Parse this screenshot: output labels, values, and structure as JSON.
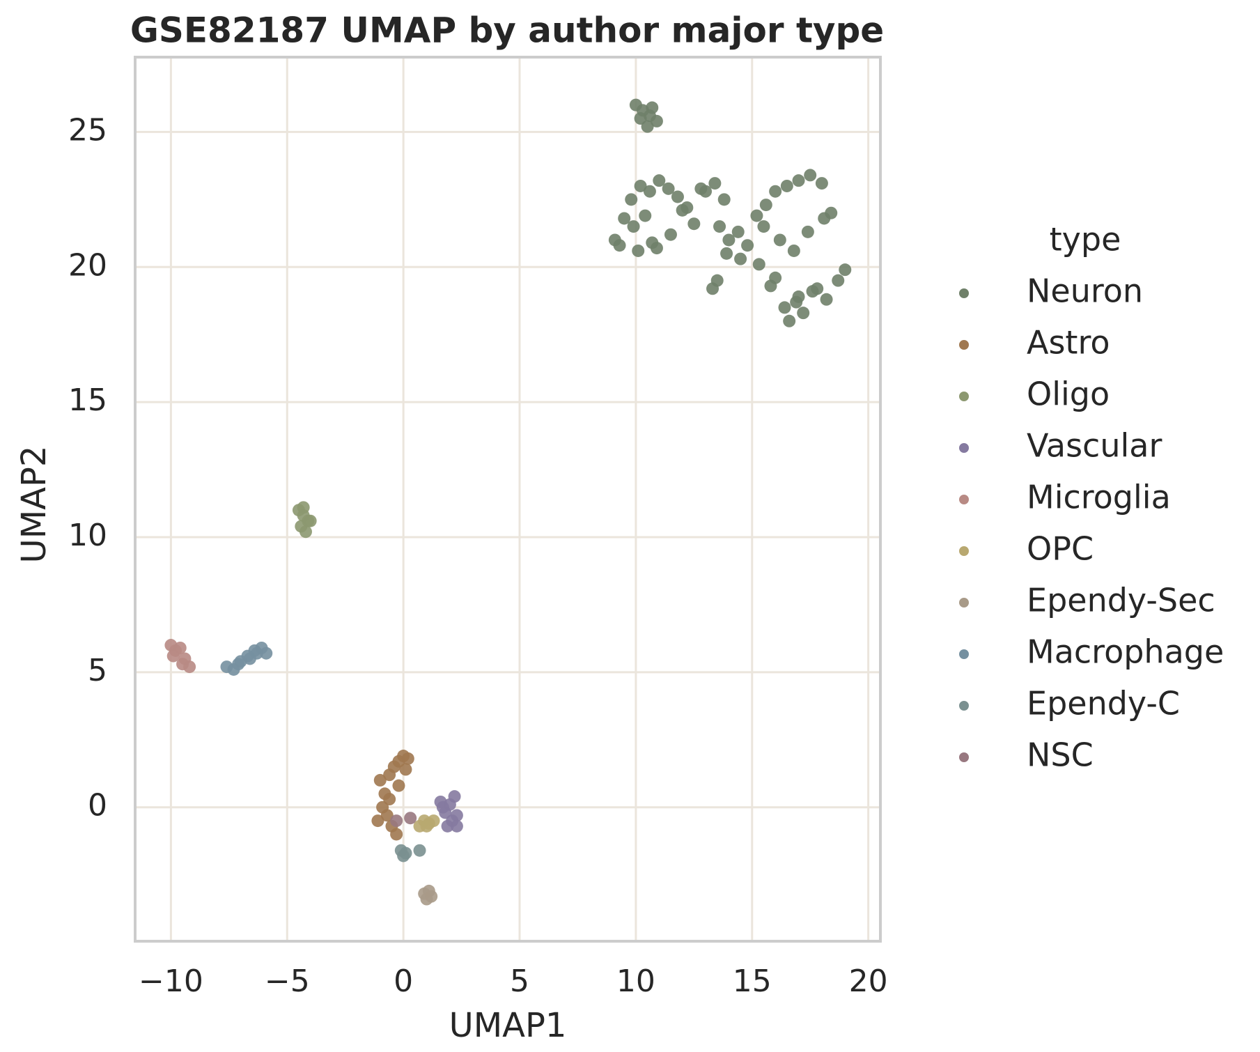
{
  "chart_data": {
    "type": "scatter",
    "title": "GSE82187 UMAP by author major type",
    "x_label": "UMAP1",
    "y_label": "UMAP2",
    "legend_title": "type",
    "legend": "right",
    "grid": true,
    "xlim": [
      -11.54,
      20.52
    ],
    "ylim": [
      -4.96,
      27.77
    ],
    "xticks": [
      {
        "value": -10,
        "label": "−10"
      },
      {
        "value": -5,
        "label": "−5"
      },
      0,
      5,
      10,
      15,
      20
    ],
    "yticks": [
      0,
      5,
      10,
      15,
      20,
      25
    ],
    "series": [
      {
        "name": "Neuron",
        "color": "#6f8069",
        "x": [
          10,
          10.3,
          10.6,
          10.9,
          10.2,
          10.7,
          10.5,
          9.1,
          9.5,
          9.8,
          10.2,
          10.6,
          11,
          11.4,
          11.8,
          12.2,
          9.3,
          9.9,
          10.4,
          10.9,
          11.5,
          12,
          12.5,
          10.1,
          10.7,
          13,
          13.4,
          13.8,
          12.8,
          13.6,
          14,
          14.4,
          14.8,
          13.9,
          14.5,
          13.3,
          13.5,
          15.2,
          15.6,
          16,
          16.5,
          17,
          17.5,
          18,
          18.4,
          15.5,
          16.2,
          16.8,
          17.4,
          18.1,
          18.7,
          19,
          15.8,
          16.4,
          17,
          17.6,
          18.2,
          16,
          16.6,
          17.2,
          17.8,
          15.3,
          16.9
        ],
        "values": [
          26,
          25.8,
          25.6,
          25.4,
          25.5,
          25.9,
          25.2,
          21,
          21.8,
          22.5,
          23,
          22.8,
          23.2,
          22.9,
          22.6,
          22.2,
          20.8,
          21.5,
          21.9,
          20.7,
          21.2,
          22.1,
          21.6,
          20.6,
          20.9,
          22.8,
          23.1,
          22.5,
          22.9,
          21.5,
          21,
          21.3,
          20.8,
          20.5,
          20.3,
          19.2,
          19.5,
          21.9,
          22.3,
          22.8,
          23,
          23.2,
          23.4,
          23.1,
          22,
          21.5,
          21,
          20.6,
          21.3,
          21.8,
          19.5,
          19.9,
          19.3,
          18.5,
          18.9,
          19.1,
          18.8,
          19.6,
          18,
          18.3,
          19.2,
          20.1,
          18.7
        ]
      },
      {
        "name": "Astro",
        "color": "#a07850",
        "x": [
          -1,
          -0.8,
          -0.6,
          -0.4,
          -0.2,
          0,
          0.2,
          -0.9,
          -0.7,
          -0.5,
          -0.3,
          -1.1,
          -0.6,
          -0.2,
          0.1
        ],
        "values": [
          1,
          0.5,
          1.2,
          1.5,
          1.7,
          1.9,
          1.8,
          0,
          -0.3,
          -0.7,
          -1,
          -0.5,
          0.3,
          0.8,
          1.4
        ]
      },
      {
        "name": "Oligo",
        "color": "#8c9870",
        "x": [
          -4.5,
          -4.3,
          -4.1,
          -4.4,
          -4.2,
          -4,
          -4.3
        ],
        "values": [
          11,
          10.8,
          10.6,
          10.4,
          10.2,
          10.6,
          11.1
        ]
      },
      {
        "name": "Vascular",
        "color": "#857aa0",
        "x": [
          1.6,
          1.8,
          2,
          2.2,
          2.3,
          1.9,
          2.1,
          2.3,
          1.7
        ],
        "values": [
          0.2,
          -0.2,
          0.1,
          0.4,
          -0.3,
          -0.7,
          -0.5,
          -0.7,
          0
        ]
      },
      {
        "name": "Microglia",
        "color": "#b88a84",
        "x": [
          -10,
          -9.8,
          -9.6,
          -9.4,
          -9.2,
          -9.9,
          -9.5
        ],
        "values": [
          6,
          5.8,
          5.9,
          5.5,
          5.2,
          5.6,
          5.3
        ]
      },
      {
        "name": "OPC",
        "color": "#b8a870",
        "x": [
          0.7,
          0.9,
          1.1,
          1.3,
          1
        ],
        "values": [
          -0.7,
          -0.5,
          -0.6,
          -0.5,
          -0.7
        ]
      },
      {
        "name": "Ependy-Sec",
        "color": "#a89a88",
        "x": [
          0.9,
          1,
          1.2,
          1.1
        ],
        "values": [
          -3.2,
          -3.4,
          -3.3,
          -3.1
        ]
      },
      {
        "name": "Macrophage",
        "color": "#7590a0",
        "x": [
          -7.6,
          -7.3,
          -7,
          -6.7,
          -6.4,
          -6.1,
          -5.9,
          -7.1,
          -6.6,
          -6.3
        ],
        "values": [
          5.2,
          5.1,
          5.4,
          5.6,
          5.8,
          5.9,
          5.7,
          5.3,
          5.5,
          5.7
        ]
      },
      {
        "name": "Ependy-C",
        "color": "#7a9090",
        "x": [
          -0.1,
          0,
          0.1,
          0.7
        ],
        "values": [
          -1.6,
          -1.8,
          -1.7,
          -1.6
        ]
      },
      {
        "name": "NSC",
        "color": "#987880",
        "x": [
          -0.3,
          0.3
        ],
        "values": [
          -0.5,
          -0.4
        ]
      }
    ]
  }
}
